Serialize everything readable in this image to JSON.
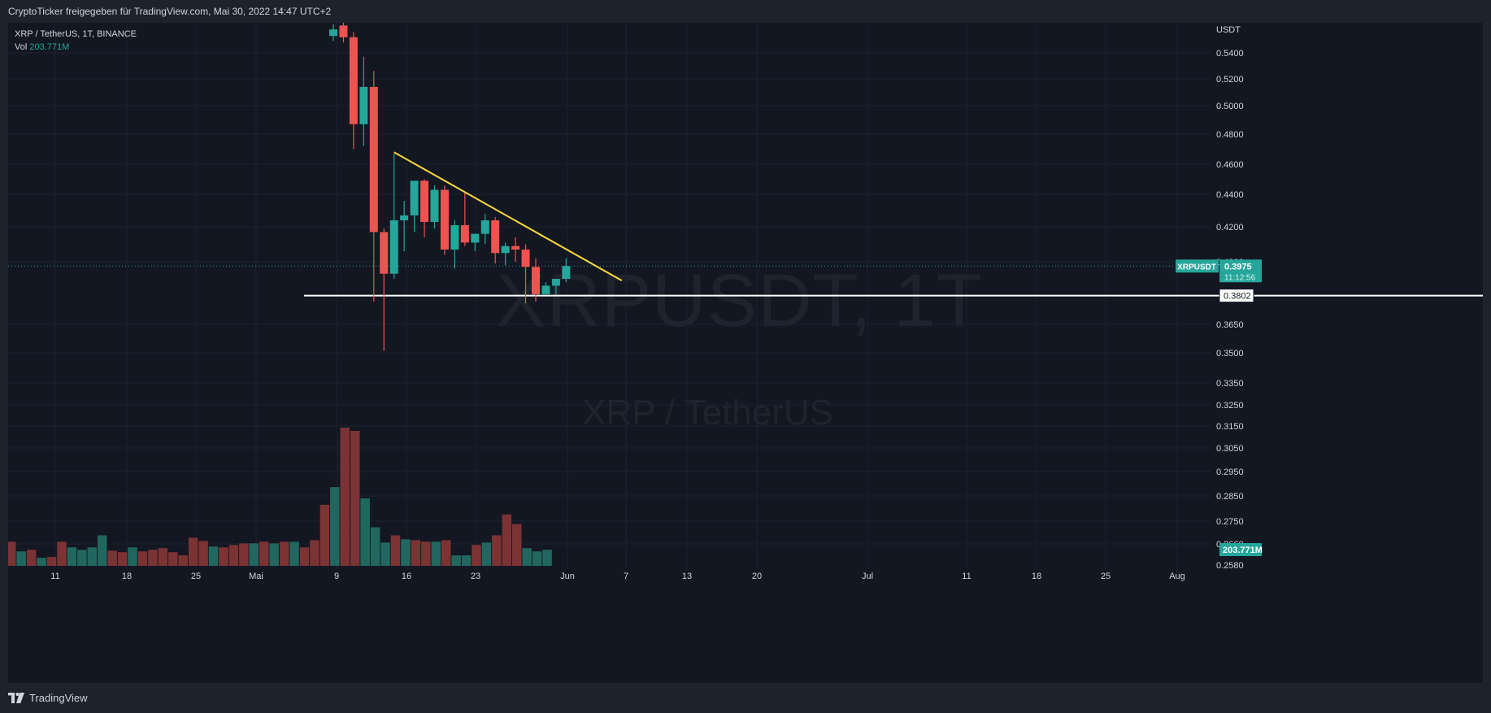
{
  "header": {
    "caption": "CryptoTicker freigegeben für TradingView.com, Mai 30, 2022 14:47 UTC+2"
  },
  "legend": {
    "symbol": "XRP / TetherUS, 1T, BINANCE",
    "vol_label": "Vol",
    "vol_value": "203.771M"
  },
  "watermark": {
    "main": "XRPUSDT, 1T",
    "sub": "XRP / TetherUS"
  },
  "price_axis": {
    "currency": "USDT",
    "labels": [
      "0.5400",
      "0.5200",
      "0.5000",
      "0.4800",
      "0.4600",
      "0.4400",
      "0.4200",
      "0.4000",
      "0.3650",
      "0.3500",
      "0.3350",
      "0.3250",
      "0.3150",
      "0.3050",
      "0.2950",
      "0.2850",
      "0.2750",
      "0.2660",
      "0.2580"
    ]
  },
  "time_axis": {
    "labels": [
      "11",
      "18",
      "25",
      "Mai",
      "9",
      "16",
      "23",
      "Jun",
      "7",
      "13",
      "20",
      "Jul",
      "11",
      "18",
      "25",
      "Aug"
    ]
  },
  "tags": {
    "symbol": "XRPUSDT",
    "last_price": "0.3975",
    "countdown": "11:12:56",
    "support": "0.3802",
    "volume": "203.771M"
  },
  "footer": {
    "brand": "TradingView"
  },
  "colors": {
    "up": "#26a69a",
    "down": "#ef5350",
    "trendline": "#f5d63c",
    "support": "#ffffff",
    "background": "#131722"
  },
  "chart_data": {
    "type": "candlestick",
    "symbol": "XRPUSDT",
    "interval": "1T",
    "candles": [
      {
        "o": 0.553,
        "h": 0.562,
        "l": 0.549,
        "c": 0.558
      },
      {
        "o": 0.561,
        "h": 0.566,
        "l": 0.548,
        "c": 0.552
      },
      {
        "o": 0.552,
        "h": 0.556,
        "l": 0.47,
        "c": 0.487
      },
      {
        "o": 0.487,
        "h": 0.537,
        "l": 0.472,
        "c": 0.514
      },
      {
        "o": 0.514,
        "h": 0.526,
        "l": 0.377,
        "c": 0.417
      },
      {
        "o": 0.417,
        "h": 0.419,
        "l": 0.351,
        "c": 0.393
      },
      {
        "o": 0.393,
        "h": 0.467,
        "l": 0.39,
        "c": 0.424
      },
      {
        "o": 0.424,
        "h": 0.436,
        "l": 0.406,
        "c": 0.427
      },
      {
        "o": 0.427,
        "h": 0.449,
        "l": 0.417,
        "c": 0.449
      },
      {
        "o": 0.449,
        "h": 0.45,
        "l": 0.414,
        "c": 0.423
      },
      {
        "o": 0.423,
        "h": 0.446,
        "l": 0.419,
        "c": 0.443
      },
      {
        "o": 0.443,
        "h": 0.446,
        "l": 0.404,
        "c": 0.407
      },
      {
        "o": 0.407,
        "h": 0.424,
        "l": 0.396,
        "c": 0.421
      },
      {
        "o": 0.421,
        "h": 0.441,
        "l": 0.409,
        "c": 0.411
      },
      {
        "o": 0.411,
        "h": 0.416,
        "l": 0.406,
        "c": 0.416
      },
      {
        "o": 0.416,
        "h": 0.428,
        "l": 0.41,
        "c": 0.424
      },
      {
        "o": 0.424,
        "h": 0.426,
        "l": 0.399,
        "c": 0.405
      },
      {
        "o": 0.405,
        "h": 0.411,
        "l": 0.398,
        "c": 0.409
      },
      {
        "o": 0.409,
        "h": 0.414,
        "l": 0.4,
        "c": 0.407
      },
      {
        "o": 0.407,
        "h": 0.41,
        "l": 0.376,
        "c": 0.397
      },
      {
        "o": 0.397,
        "h": 0.402,
        "l": 0.377,
        "c": 0.381
      },
      {
        "o": 0.381,
        "h": 0.388,
        "l": 0.381,
        "c": 0.386
      },
      {
        "o": 0.386,
        "h": 0.39,
        "l": 0.381,
        "c": 0.39
      },
      {
        "o": 0.39,
        "h": 0.402,
        "l": 0.388,
        "c": 0.3975
      }
    ],
    "volume": [
      {
        "v": 15,
        "d": "down"
      },
      {
        "v": 9,
        "d": "up"
      },
      {
        "v": 10,
        "d": "down"
      },
      {
        "v": 5,
        "d": "up"
      },
      {
        "v": 5.5,
        "d": "down"
      },
      {
        "v": 15,
        "d": "down"
      },
      {
        "v": 11.5,
        "d": "up"
      },
      {
        "v": 10,
        "d": "up"
      },
      {
        "v": 11.5,
        "d": "up"
      },
      {
        "v": 19,
        "d": "up"
      },
      {
        "v": 9.5,
        "d": "down"
      },
      {
        "v": 8.5,
        "d": "down"
      },
      {
        "v": 11.5,
        "d": "up"
      },
      {
        "v": 9,
        "d": "down"
      },
      {
        "v": 10,
        "d": "down"
      },
      {
        "v": 11,
        "d": "down"
      },
      {
        "v": 8.5,
        "d": "down"
      },
      {
        "v": 6.5,
        "d": "down"
      },
      {
        "v": 17.5,
        "d": "down"
      },
      {
        "v": 15.5,
        "d": "down"
      },
      {
        "v": 12,
        "d": "up"
      },
      {
        "v": 11.5,
        "d": "down"
      },
      {
        "v": 13,
        "d": "down"
      },
      {
        "v": 14,
        "d": "down"
      },
      {
        "v": 14,
        "d": "up"
      },
      {
        "v": 15,
        "d": "down"
      },
      {
        "v": 14,
        "d": "up"
      },
      {
        "v": 15,
        "d": "down"
      },
      {
        "v": 15,
        "d": "up"
      },
      {
        "v": 11.5,
        "d": "down"
      },
      {
        "v": 16,
        "d": "down"
      },
      {
        "v": 38,
        "d": "down"
      },
      {
        "v": 49,
        "d": "up"
      },
      {
        "v": 86,
        "d": "down"
      },
      {
        "v": 84,
        "d": "down"
      },
      {
        "v": 42,
        "d": "up"
      },
      {
        "v": 24,
        "d": "up"
      },
      {
        "v": 14.5,
        "d": "up"
      },
      {
        "v": 19,
        "d": "down"
      },
      {
        "v": 16.5,
        "d": "up"
      },
      {
        "v": 16,
        "d": "down"
      },
      {
        "v": 15,
        "d": "down"
      },
      {
        "v": 15,
        "d": "up"
      },
      {
        "v": 16,
        "d": "down"
      },
      {
        "v": 6.5,
        "d": "up"
      },
      {
        "v": 6.5,
        "d": "up"
      },
      {
        "v": 13,
        "d": "down"
      },
      {
        "v": 14.5,
        "d": "up"
      },
      {
        "v": 19,
        "d": "down"
      },
      {
        "v": 32,
        "d": "down"
      },
      {
        "v": 26,
        "d": "down"
      },
      {
        "v": 11,
        "d": "up"
      },
      {
        "v": 9,
        "d": "up"
      },
      {
        "v": 10,
        "d": "up"
      }
    ],
    "trendline": [
      {
        "x": 12,
        "y": 0.468
      },
      {
        "x": 34.5,
        "y": 0.389
      }
    ],
    "support_line": 0.3802,
    "last_price": 0.3975
  }
}
